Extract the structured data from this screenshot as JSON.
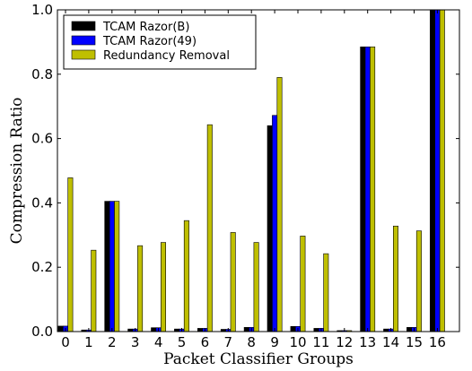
{
  "chart_data": {
    "type": "bar",
    "xlabel": "Packet Classifier Groups",
    "ylabel": "Compression Ratio",
    "ylim": [
      0,
      1.0
    ],
    "yticks": [
      "0.0",
      "0.2",
      "0.4",
      "0.6",
      "0.8",
      "1.0"
    ],
    "categories": [
      "0",
      "1",
      "2",
      "3",
      "4",
      "5",
      "6",
      "7",
      "8",
      "9",
      "10",
      "11",
      "12",
      "13",
      "14",
      "15",
      "16"
    ],
    "legend_position": "top-left",
    "grid": false,
    "series": [
      {
        "name": "TCAM Razor(B)",
        "color": "#000000",
        "values": [
          0.017,
          0.005,
          0.405,
          0.008,
          0.012,
          0.008,
          0.01,
          0.007,
          0.013,
          0.64,
          0.016,
          0.01,
          0.003,
          0.885,
          0.008,
          0.013,
          1.0
        ]
      },
      {
        "name": "TCAM Razor(49)",
        "color": "#0000ff",
        "values": [
          0.017,
          0.005,
          0.405,
          0.008,
          0.012,
          0.008,
          0.01,
          0.007,
          0.013,
          0.672,
          0.016,
          0.01,
          0.003,
          0.885,
          0.008,
          0.013,
          1.0
        ]
      },
      {
        "name": "Redundancy Removal",
        "color": "#bfbf00",
        "values": [
          0.478,
          0.253,
          0.405,
          0.267,
          0.277,
          0.345,
          0.643,
          0.308,
          0.277,
          0.79,
          0.297,
          0.242,
          0.003,
          0.885,
          0.328,
          0.313,
          1.0
        ]
      }
    ]
  }
}
